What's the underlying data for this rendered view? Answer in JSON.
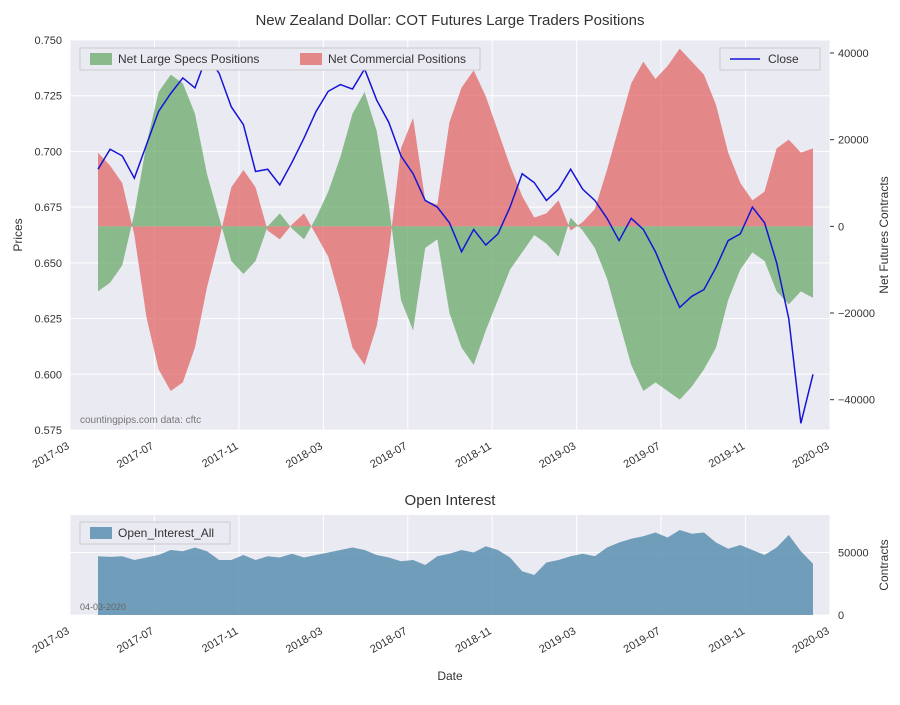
{
  "main_chart": {
    "title": "New Zealand Dollar: COT Futures Large Traders Positions",
    "type": "area_line_dual_axis",
    "background_color": "#eaeaf2",
    "grid_color": "#ffffff",
    "y_left": {
      "label": "Prices",
      "lim": [
        0.575,
        0.75
      ],
      "ticks": [
        0.575,
        0.6,
        0.625,
        0.65,
        0.675,
        0.7,
        0.725,
        0.75
      ],
      "tick_labels": [
        "0.575",
        "0.600",
        "0.625",
        "0.650",
        "0.675",
        "0.700",
        "0.725",
        "0.750"
      ],
      "label_fontsize": 12
    },
    "y_right": {
      "label": "Net Futures Contracts",
      "lim": [
        -47000,
        43000
      ],
      "ticks": [
        -40000,
        -20000,
        0,
        20000,
        40000
      ],
      "tick_labels": [
        "−40000",
        "−20000",
        "0",
        "20000",
        "40000"
      ],
      "label_fontsize": 12
    },
    "x": {
      "ticks": [
        "2017-03",
        "2017-07",
        "2017-11",
        "2018-03",
        "2018-07",
        "2018-11",
        "2019-03",
        "2019-07",
        "2019-11",
        "2020-03"
      ]
    },
    "legend": {
      "items": [
        {
          "label": "Net Large Specs Positions",
          "color": "#6aaa6a",
          "type": "patch"
        },
        {
          "label": "Net Commercial Positions",
          "color": "#e06666",
          "type": "patch"
        },
        {
          "label": "Close",
          "color": "#1515d6",
          "type": "line"
        }
      ]
    },
    "watermark": "countingpips.com    data: cftc",
    "series": {
      "specs": [
        -15000,
        -13000,
        -9000,
        3000,
        19000,
        31000,
        35000,
        33000,
        26000,
        12000,
        2000,
        -8000,
        -11000,
        -8000,
        0,
        3000,
        -500,
        -3000,
        2000,
        8000,
        16000,
        26000,
        31000,
        22000,
        5000,
        -17000,
        -24000,
        -5000,
        -3000,
        -20000,
        -28000,
        -32000,
        -24000,
        -17000,
        -10000,
        -6000,
        -2000,
        -4000,
        -7000,
        2000,
        -1000,
        -5000,
        -12000,
        -22000,
        -32000,
        -38000,
        -36000,
        -38000,
        -40000,
        -37000,
        -33000,
        -28000,
        -17000,
        -10000,
        -6000,
        -8000,
        -15000,
        -18000,
        -15000,
        -16500
      ],
      "comm": [
        17000,
        14000,
        10000,
        -2000,
        -21000,
        -33000,
        -38000,
        -36000,
        -28000,
        -14000,
        -3000,
        9000,
        13000,
        9000,
        -1000,
        -3000,
        400,
        3000,
        -2000,
        -7000,
        -17000,
        -28000,
        -32000,
        -23000,
        -6000,
        18000,
        25000,
        6000,
        5000,
        24000,
        32000,
        36000,
        30000,
        22000,
        14000,
        7000,
        2000,
        3000,
        6000,
        -1000,
        1000,
        4000,
        13000,
        23000,
        33000,
        38000,
        34000,
        37000,
        41000,
        38000,
        35000,
        28000,
        17000,
        10000,
        6000,
        8000,
        18000,
        20000,
        17000,
        18000
      ],
      "close": [
        0.692,
        0.701,
        0.698,
        0.688,
        0.703,
        0.718,
        0.726,
        0.733,
        0.7285,
        0.743,
        0.735,
        0.72,
        0.712,
        0.691,
        0.692,
        0.685,
        0.695,
        0.706,
        0.718,
        0.727,
        0.73,
        0.728,
        0.737,
        0.723,
        0.713,
        0.698,
        0.69,
        0.678,
        0.675,
        0.668,
        0.655,
        0.665,
        0.658,
        0.663,
        0.675,
        0.69,
        0.686,
        0.678,
        0.683,
        0.692,
        0.683,
        0.678,
        0.67,
        0.66,
        0.67,
        0.665,
        0.655,
        0.642,
        0.63,
        0.635,
        0.638,
        0.648,
        0.66,
        0.663,
        0.675,
        0.668,
        0.65,
        0.625,
        0.578,
        0.6
      ]
    }
  },
  "oi_chart": {
    "title": "Open Interest",
    "type": "area",
    "background_color": "#eaeaf2",
    "y": {
      "label": "Contracts",
      "lim": [
        0,
        80000
      ],
      "ticks": [
        0,
        50000
      ],
      "tick_labels": [
        "0",
        "50000"
      ]
    },
    "x": {
      "label": "Date",
      "ticks": [
        "2017-03",
        "2017-07",
        "2017-11",
        "2018-03",
        "2018-07",
        "2018-11",
        "2019-03",
        "2019-07",
        "2019-11",
        "2020-03"
      ]
    },
    "legend": {
      "items": [
        {
          "label": "Open_Interest_All",
          "color": "#5b8fb0",
          "type": "patch"
        }
      ]
    },
    "date_stamp": "04-03-2020",
    "series": {
      "oi": [
        47000,
        46500,
        47000,
        44000,
        46000,
        48000,
        52000,
        51000,
        54000,
        51000,
        44000,
        44000,
        48000,
        44000,
        47000,
        46000,
        49000,
        46000,
        48000,
        50000,
        52000,
        54000,
        52000,
        48000,
        46000,
        43000,
        44000,
        40000,
        47000,
        49000,
        52000,
        50000,
        55000,
        52000,
        46000,
        35000,
        32000,
        42000,
        44000,
        47000,
        49000,
        47000,
        54000,
        58000,
        61000,
        63000,
        66000,
        62000,
        68000,
        65000,
        66000,
        58000,
        53000,
        56000,
        52000,
        48000,
        54000,
        64000,
        51000,
        41000
      ]
    },
    "fill_color": "#5b8fb0"
  }
}
